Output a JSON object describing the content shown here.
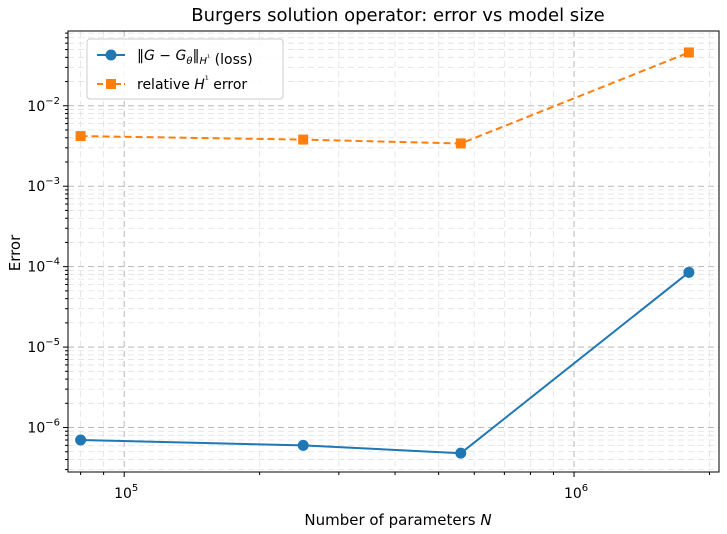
{
  "chart_data": {
    "type": "line",
    "title": "Burgers solution operator: error vs model size",
    "xlabel": "Number of parameters N",
    "ylabel": "Error",
    "xscale": "log",
    "yscale": "log",
    "xlim": [
      75000,
      2100000
    ],
    "ylim": [
      2.8e-07,
      0.085
    ],
    "grid": true,
    "legend_position": "top-left",
    "x_ticks": [
      {
        "value": 100000,
        "mantissa": "10",
        "exponent": "5"
      },
      {
        "value": 1000000,
        "mantissa": "10",
        "exponent": "6"
      }
    ],
    "y_ticks": [
      {
        "value": 1e-06,
        "mantissa": "10",
        "exponent": "−6"
      },
      {
        "value": 1e-05,
        "mantissa": "10",
        "exponent": "−5"
      },
      {
        "value": 0.0001,
        "mantissa": "10",
        "exponent": "−4"
      },
      {
        "value": 0.001,
        "mantissa": "10",
        "exponent": "−3"
      },
      {
        "value": 0.01,
        "mantissa": "10",
        "exponent": "−2"
      }
    ],
    "series": [
      {
        "name": "‖G − Gθ‖H¹ (loss)",
        "color": "#1f77b4",
        "marker": "circle",
        "linestyle": "solid",
        "x": [
          80000,
          250000,
          560000,
          1800000
        ],
        "y": [
          7e-07,
          6e-07,
          4.8e-07,
          8.5e-05
        ]
      },
      {
        "name": "relative H¹ error",
        "color": "#ff7f0e",
        "marker": "square",
        "linestyle": "dashed",
        "x": [
          80000,
          250000,
          560000,
          1800000
        ],
        "y": [
          0.0042,
          0.0038,
          0.0034,
          0.046
        ]
      }
    ]
  }
}
